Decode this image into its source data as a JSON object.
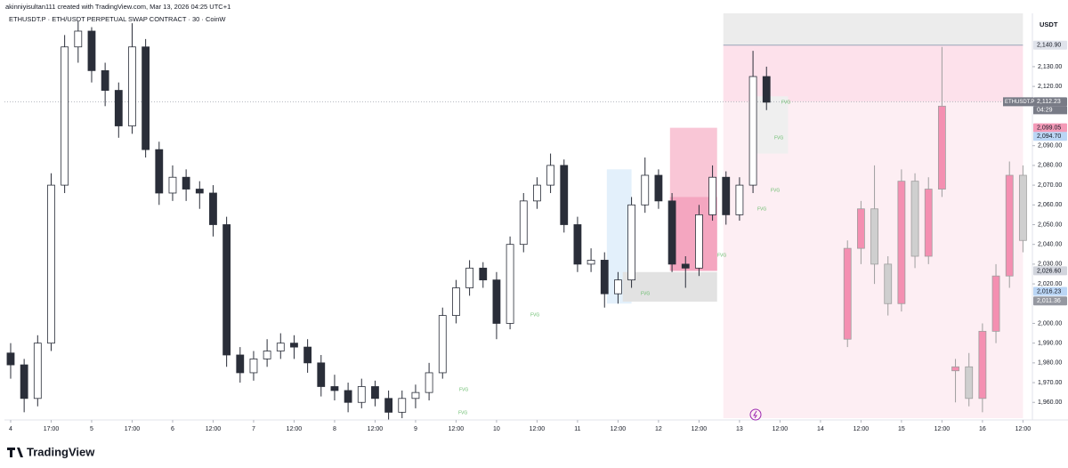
{
  "chart_data": {
    "type": "candlestick",
    "header": "akinniyisultan111 created with TradingView.com, Mar 13, 2026 04:25 UTC+1",
    "title": "ETHUSDT.P · ETH/USDT PERPETUAL SWAP CONTRACT · 30 · CoinW",
    "currency": "USDT",
    "brand": "TradingView",
    "symbol_tag": "ETHUSDT.P",
    "countdown": "04:29",
    "fvg_label": "FVG",
    "xlim": [
      -0.46,
      75.7
    ],
    "ylim": [
      1952,
      2157
    ],
    "grid": false,
    "xticks": [
      {
        "value": 0,
        "label": "4"
      },
      {
        "value": 3,
        "label": "17:00"
      },
      {
        "value": 6,
        "label": "5"
      },
      {
        "value": 9,
        "label": "17:00"
      },
      {
        "value": 12,
        "label": "6"
      },
      {
        "value": 15,
        "label": "12:00"
      },
      {
        "value": 18,
        "label": "7"
      },
      {
        "value": 21,
        "label": "12:00"
      },
      {
        "value": 24,
        "label": "8"
      },
      {
        "value": 27,
        "label": "12:00"
      },
      {
        "value": 30,
        "label": "9"
      },
      {
        "value": 33,
        "label": "12:00"
      },
      {
        "value": 36,
        "label": "10"
      },
      {
        "value": 39,
        "label": "12:00"
      },
      {
        "value": 42,
        "label": "11"
      },
      {
        "value": 45,
        "label": "12:00"
      },
      {
        "value": 48,
        "label": "12"
      },
      {
        "value": 51,
        "label": "12:00"
      },
      {
        "value": 54,
        "label": "13"
      },
      {
        "value": 57,
        "label": "12:00"
      },
      {
        "value": 60,
        "label": "14"
      },
      {
        "value": 63,
        "label": "12:00"
      },
      {
        "value": 66,
        "label": "15"
      },
      {
        "value": 69,
        "label": "12:00"
      },
      {
        "value": 72,
        "label": "16"
      },
      {
        "value": 75,
        "label": "12:00"
      }
    ],
    "yticks": [
      {
        "value": 1960,
        "label": "1,960.00"
      },
      {
        "value": 1970,
        "label": "1,970.00"
      },
      {
        "value": 1980,
        "label": "1,980.00"
      },
      {
        "value": 1990,
        "label": "1,990.00"
      },
      {
        "value": 2000,
        "label": "2,000.00"
      },
      {
        "value": 2020,
        "label": "2,020.00"
      },
      {
        "value": 2030,
        "label": "2,030.00"
      },
      {
        "value": 2040,
        "label": "2,040.00"
      },
      {
        "value": 2050,
        "label": "2,050.00"
      },
      {
        "value": 2060,
        "label": "2,060.00"
      },
      {
        "value": 2070,
        "label": "2,070.00"
      },
      {
        "value": 2080,
        "label": "2,080.00"
      },
      {
        "value": 2090,
        "label": "2,090.00"
      },
      {
        "value": 2120,
        "label": "2,120.00"
      },
      {
        "value": 2130,
        "label": "2,130.00"
      }
    ],
    "price_labels": [
      {
        "value": 2140.9,
        "label": "2,140.90",
        "color": "#e0e3eb",
        "text_color": "#131722"
      },
      {
        "value": 2112.23,
        "label": "2,112.23",
        "color": "#787b86",
        "text_color": "#ffffff"
      },
      {
        "value": 2099.05,
        "label": "2,099.05",
        "color": "#f49bb8",
        "text_color": "#131722"
      },
      {
        "value": 2094.7,
        "label": "2,094.70",
        "color": "#bbd6f5",
        "text_color": "#131722"
      },
      {
        "value": 2026.6,
        "label": "2,026.60",
        "color": "#d1d4dc",
        "text_color": "#131722"
      },
      {
        "value": 2016.23,
        "label": "2,016.23",
        "color": "#bbd6f5",
        "text_color": "#131722"
      },
      {
        "value": 2011.36,
        "label": "2,011.36",
        "color": "#9598a1",
        "text_color": "#ffffff"
      }
    ],
    "zones": [
      {
        "x": [
          52.8,
          75.0
        ],
        "y": [
          1952,
          2112.23
        ],
        "color": "#fdeef3"
      },
      {
        "x": [
          52.8,
          75.0
        ],
        "y": [
          2112.23,
          2140.9
        ],
        "color": "#fde1eb"
      },
      {
        "x": [
          52.8,
          75.0
        ],
        "y": [
          2140.9,
          2157
        ],
        "color": "#ececec"
      },
      {
        "x": [
          44.17,
          46.0
        ],
        "y": [
          2010,
          2078
        ],
        "color": "#e3f0fb"
      },
      {
        "x": [
          48.85,
          52.34
        ],
        "y": [
          2026.6,
          2099.05
        ],
        "color": "#f9c6d6"
      },
      {
        "x": [
          48.85,
          52.34
        ],
        "y": [
          2026.6,
          2064
        ],
        "color": "#f4a6c0"
      },
      {
        "x": [
          45.35,
          52.34
        ],
        "y": [
          2011,
          2026
        ],
        "color": "#e2e2e2"
      },
      {
        "x": [
          55.2,
          57.6
        ],
        "y": [
          2086,
          2115
        ],
        "color": "#efefef"
      }
    ],
    "hlines": [
      {
        "value": 2140.9,
        "x": [
          52.8,
          75.0
        ],
        "color": "#9aa3b8",
        "dash": false
      },
      {
        "value": 2112.23,
        "x": [
          -0.46,
          75.7
        ],
        "color": "#b2b5be",
        "dash": true
      }
    ],
    "series": [
      {
        "up_color": "#ffffff",
        "down_color": "#2a2e39",
        "line_color": "#2a2e39",
        "x": [
          0,
          1,
          2,
          3,
          4,
          5,
          6,
          7,
          8,
          9,
          10,
          11,
          12,
          13,
          14,
          15,
          16,
          17,
          18,
          19,
          20,
          21,
          22,
          23,
          24,
          25,
          26,
          27,
          28,
          29,
          30,
          31,
          32,
          33,
          34,
          35,
          36,
          37,
          38,
          39,
          40,
          41,
          42,
          43,
          44,
          45,
          46,
          47,
          48,
          49,
          50,
          51,
          52,
          53,
          54,
          55,
          56
        ],
        "candles": [
          [
            1985,
            1990,
            1972,
            1979
          ],
          [
            1979,
            1982,
            1955,
            1962
          ],
          [
            1962,
            1994,
            1958,
            1990
          ],
          [
            1990,
            2076,
            1986,
            2070
          ],
          [
            2070,
            2146,
            2066,
            2140
          ],
          [
            2140,
            2153,
            2132,
            2148
          ],
          [
            2148,
            2150,
            2122,
            2128
          ],
          [
            2128,
            2132,
            2110,
            2118
          ],
          [
            2118,
            2122,
            2094,
            2100
          ],
          [
            2100,
            2152,
            2096,
            2140
          ],
          [
            2140,
            2144,
            2084,
            2088
          ],
          [
            2088,
            2092,
            2060,
            2066
          ],
          [
            2066,
            2080,
            2062,
            2074
          ],
          [
            2074,
            2078,
            2062,
            2068
          ],
          [
            2068,
            2072,
            2058,
            2066
          ],
          [
            2066,
            2070,
            2044,
            2050
          ],
          [
            2050,
            2054,
            1978,
            1984
          ],
          [
            1984,
            1988,
            1970,
            1975
          ],
          [
            1975,
            1986,
            1971,
            1982
          ],
          [
            1982,
            1992,
            1978,
            1986
          ],
          [
            1986,
            1995,
            1982,
            1990
          ],
          [
            1990,
            1994,
            1982,
            1988
          ],
          [
            1988,
            1992,
            1975,
            1980
          ],
          [
            1980,
            1984,
            1963,
            1968
          ],
          [
            1968,
            1974,
            1961,
            1966
          ],
          [
            1966,
            1970,
            1955,
            1960
          ],
          [
            1960,
            1972,
            1957,
            1968
          ],
          [
            1968,
            1971,
            1958,
            1962
          ],
          [
            1962,
            1966,
            1951,
            1955
          ],
          [
            1955,
            1966,
            1952,
            1962
          ],
          [
            1962,
            1969,
            1957,
            1965
          ],
          [
            1965,
            1980,
            1961,
            1975
          ],
          [
            1975,
            2008,
            1972,
            2004
          ],
          [
            2004,
            2022,
            2000,
            2018
          ],
          [
            2018,
            2032,
            2014,
            2028
          ],
          [
            2028,
            2031,
            2018,
            2022
          ],
          [
            2022,
            2026,
            1992,
            2000
          ],
          [
            2000,
            2044,
            1997,
            2040
          ],
          [
            2040,
            2066,
            2036,
            2062
          ],
          [
            2062,
            2074,
            2058,
            2070
          ],
          [
            2070,
            2086,
            2066,
            2080
          ],
          [
            2080,
            2083,
            2046,
            2050
          ],
          [
            2050,
            2054,
            2026,
            2030
          ],
          [
            2030,
            2038,
            2026,
            2032
          ],
          [
            2032,
            2036,
            2008,
            2015
          ],
          [
            2015,
            2026,
            2010,
            2022
          ],
          [
            2022,
            2064,
            2018,
            2060
          ],
          [
            2060,
            2084,
            2056,
            2075
          ],
          [
            2075,
            2078,
            2058,
            2062
          ],
          [
            2062,
            2066,
            2026,
            2030
          ],
          [
            2030,
            2034,
            2018,
            2028
          ],
          [
            2028,
            2060,
            2024,
            2055
          ],
          [
            2055,
            2080,
            2052,
            2074
          ],
          [
            2074,
            2077,
            2050,
            2055
          ],
          [
            2055,
            2074,
            2052,
            2070
          ],
          [
            2070,
            2138,
            2066,
            2125
          ],
          [
            2125,
            2130,
            2108,
            2112
          ]
        ]
      },
      {
        "up_color": "#f48fb1",
        "down_color": "#cfcfcf",
        "line_color": "#9e9e9e",
        "x": [
          62,
          63,
          64,
          65,
          66,
          67,
          68,
          69,
          70,
          71,
          72,
          73,
          74,
          75
        ],
        "candles": [
          [
            1992,
            2042,
            1988,
            2038
          ],
          [
            2038,
            2062,
            2030,
            2058
          ],
          [
            2058,
            2080,
            2020,
            2030
          ],
          [
            2030,
            2034,
            2004,
            2010
          ],
          [
            2010,
            2078,
            2006,
            2072
          ],
          [
            2072,
            2076,
            2028,
            2034
          ],
          [
            2034,
            2074,
            2030,
            2068
          ],
          [
            2068,
            2140,
            2064,
            2110
          ],
          [
            1976,
            1982,
            1960,
            1978
          ],
          [
            1978,
            1985,
            1958,
            1962
          ],
          [
            1962,
            2000,
            1955,
            1996
          ],
          [
            1996,
            2030,
            1990,
            2024
          ],
          [
            2024,
            2082,
            2018,
            2075
          ],
          [
            2075,
            2080,
            2036,
            2042
          ]
        ]
      }
    ]
  }
}
